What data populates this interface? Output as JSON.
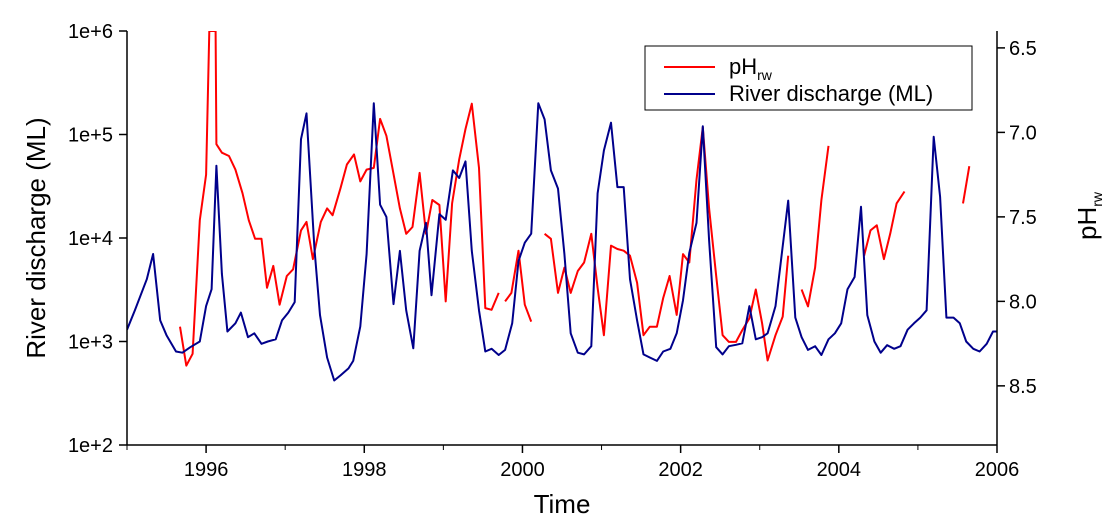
{
  "chart_data": {
    "type": "line",
    "title": "",
    "xlabel": "Time",
    "ylabel_left": "River discharge (ML)",
    "ylabel_right": {
      "base": "pH",
      "sub": "rw"
    },
    "xlim": [
      1995.0,
      2006.0
    ],
    "x_ticks": [
      1996,
      1998,
      2000,
      2002,
      2004,
      2006
    ],
    "x_tick_labels": [
      "1996",
      "1998",
      "2000",
      "2002",
      "2004",
      "2006"
    ],
    "ylim_left": [
      100,
      1000000
    ],
    "y_scale_left": "log",
    "y_ticks_left": [
      100,
      1000,
      10000,
      100000,
      1000000
    ],
    "y_tick_labels_left": [
      "1e+2",
      "1e+3",
      "1e+4",
      "1e+5",
      "1e+6"
    ],
    "ylim_right": [
      6.4,
      8.85
    ],
    "y_right_inverted": true,
    "y_ticks_right": [
      6.5,
      7.0,
      7.5,
      8.0,
      8.5
    ],
    "y_tick_labels_right": [
      "6.5",
      "7.0",
      "7.5",
      "8.0",
      "8.5"
    ],
    "grid": false,
    "legend_position": "top-right",
    "legend": [
      {
        "base": "pH",
        "sub": "rw",
        "color": "#ff0000"
      },
      {
        "base": "River discharge (ML)",
        "sub": "",
        "color": "#00008b"
      }
    ],
    "series": [
      {
        "name": "pHrw",
        "axis": "right",
        "color": "#ff0000",
        "segments": [
          [
            [
              1995.67,
              8.15
            ],
            [
              1995.75,
              8.38
            ],
            [
              1995.83,
              8.31
            ],
            [
              1995.92,
              7.52
            ],
            [
              1996.0,
              7.25
            ],
            [
              1996.04,
              6.4
            ],
            [
              1996.12,
              6.4
            ],
            [
              1996.13,
              7.07
            ],
            [
              1996.2,
              7.12
            ],
            [
              1996.29,
              7.14
            ],
            [
              1996.37,
              7.22
            ],
            [
              1996.46,
              7.36
            ],
            [
              1996.54,
              7.52
            ],
            [
              1996.62,
              7.63
            ],
            [
              1996.7,
              7.63
            ],
            [
              1996.77,
              7.92
            ],
            [
              1996.85,
              7.79
            ],
            [
              1996.93,
              8.02
            ],
            [
              1997.02,
              7.85
            ],
            [
              1997.1,
              7.81
            ],
            [
              1997.2,
              7.58
            ],
            [
              1997.27,
              7.53
            ],
            [
              1997.35,
              7.75
            ],
            [
              1997.45,
              7.53
            ],
            [
              1997.53,
              7.45
            ],
            [
              1997.6,
              7.49
            ],
            [
              1997.7,
              7.33
            ],
            [
              1997.78,
              7.19
            ],
            [
              1997.87,
              7.13
            ],
            [
              1997.95,
              7.29
            ],
            [
              1998.03,
              7.22
            ],
            [
              1998.12,
              7.21
            ],
            [
              1998.2,
              6.92
            ],
            [
              1998.28,
              7.02
            ],
            [
              1998.36,
              7.22
            ],
            [
              1998.45,
              7.45
            ],
            [
              1998.53,
              7.6
            ],
            [
              1998.61,
              7.56
            ],
            [
              1998.7,
              7.24
            ],
            [
              1998.78,
              7.6
            ],
            [
              1998.86,
              7.4
            ],
            [
              1998.95,
              7.43
            ],
            [
              1999.03,
              8.0
            ],
            [
              1999.11,
              7.42
            ],
            [
              1999.2,
              7.16
            ],
            [
              1999.28,
              6.98
            ],
            [
              1999.36,
              6.83
            ],
            [
              1999.45,
              7.21
            ],
            [
              1999.53,
              8.04
            ],
            [
              1999.61,
              8.05
            ],
            [
              1999.7,
              7.95
            ]
          ],
          [
            [
              1999.78,
              8.0
            ],
            [
              1999.86,
              7.95
            ],
            [
              1999.95,
              7.7
            ],
            [
              2000.03,
              8.02
            ],
            [
              2000.11,
              8.12
            ]
          ],
          [
            [
              2000.28,
              7.6
            ],
            [
              2000.36,
              7.63
            ],
            [
              2000.45,
              7.95
            ],
            [
              2000.53,
              7.8
            ],
            [
              2000.61,
              7.95
            ],
            [
              2000.7,
              7.82
            ],
            [
              2000.78,
              7.77
            ],
            [
              2000.87,
              7.6
            ],
            [
              2000.95,
              7.92
            ],
            [
              2001.03,
              8.2
            ],
            [
              2001.12,
              7.67
            ],
            [
              2001.2,
              7.69
            ],
            [
              2001.28,
              7.7
            ],
            [
              2001.36,
              7.73
            ],
            [
              2001.45,
              7.89
            ],
            [
              2001.53,
              8.2
            ],
            [
              2001.61,
              8.15
            ],
            [
              2001.7,
              8.15
            ],
            [
              2001.78,
              7.98
            ],
            [
              2001.86,
              7.85
            ],
            [
              2001.95,
              8.08
            ],
            [
              2002.03,
              7.72
            ],
            [
              2002.11,
              7.77
            ],
            [
              2002.2,
              7.28
            ],
            [
              2002.28,
              6.97
            ],
            [
              2002.36,
              7.45
            ],
            [
              2002.45,
              7.85
            ],
            [
              2002.53,
              8.2
            ],
            [
              2002.61,
              8.24
            ],
            [
              2002.7,
              8.24
            ],
            [
              2002.78,
              8.17
            ],
            [
              2002.87,
              8.1
            ],
            [
              2002.95,
              7.93
            ],
            [
              2003.03,
              8.13
            ],
            [
              2003.1,
              8.35
            ],
            [
              2003.2,
              8.2
            ],
            [
              2003.29,
              8.09
            ],
            [
              2003.36,
              7.73
            ]
          ],
          [
            [
              2003.53,
              7.93
            ],
            [
              2003.61,
              8.03
            ],
            [
              2003.7,
              7.8
            ],
            [
              2003.78,
              7.4
            ],
            [
              2003.87,
              7.08
            ]
          ],
          [
            [
              2004.32,
              7.73
            ],
            [
              2004.4,
              7.58
            ],
            [
              2004.48,
              7.55
            ],
            [
              2004.57,
              7.75
            ],
            [
              2004.65,
              7.6
            ],
            [
              2004.73,
              7.42
            ],
            [
              2004.83,
              7.35
            ]
          ],
          [
            [
              2005.57,
              7.42
            ],
            [
              2005.65,
              7.2
            ]
          ]
        ]
      },
      {
        "name": "River discharge (ML)",
        "axis": "left",
        "color": "#00008b",
        "points": [
          [
            1995.0,
            1300
          ],
          [
            1995.1,
            2000
          ],
          [
            1995.25,
            4000
          ],
          [
            1995.33,
            7000
          ],
          [
            1995.42,
            1600
          ],
          [
            1995.5,
            1150
          ],
          [
            1995.62,
            800
          ],
          [
            1995.7,
            780
          ],
          [
            1995.8,
            880
          ],
          [
            1995.92,
            1000
          ],
          [
            1996.0,
            2200
          ],
          [
            1996.07,
            3200
          ],
          [
            1996.13,
            50000
          ],
          [
            1996.2,
            4500
          ],
          [
            1996.27,
            1250
          ],
          [
            1996.37,
            1500
          ],
          [
            1996.44,
            1900
          ],
          [
            1996.53,
            1100
          ],
          [
            1996.61,
            1200
          ],
          [
            1996.7,
            950
          ],
          [
            1996.78,
            1000
          ],
          [
            1996.88,
            1050
          ],
          [
            1996.96,
            1600
          ],
          [
            1997.04,
            1900
          ],
          [
            1997.12,
            2400
          ],
          [
            1997.2,
            90000
          ],
          [
            1997.27,
            160000
          ],
          [
            1997.37,
            8000
          ],
          [
            1997.44,
            1800
          ],
          [
            1997.53,
            700
          ],
          [
            1997.62,
            420
          ],
          [
            1997.7,
            470
          ],
          [
            1997.8,
            550
          ],
          [
            1997.86,
            650
          ],
          [
            1997.95,
            1400
          ],
          [
            1998.03,
            7000
          ],
          [
            1998.12,
            200000
          ],
          [
            1998.2,
            21000
          ],
          [
            1998.28,
            16000
          ],
          [
            1998.37,
            2300
          ],
          [
            1998.45,
            7500
          ],
          [
            1998.53,
            2000
          ],
          [
            1998.62,
            860
          ],
          [
            1998.7,
            7500
          ],
          [
            1998.78,
            14000
          ],
          [
            1998.85,
            2800
          ],
          [
            1998.95,
            17000
          ],
          [
            1999.03,
            15000
          ],
          [
            1999.12,
            45000
          ],
          [
            1999.2,
            38000
          ],
          [
            1999.28,
            55000
          ],
          [
            1999.36,
            7500
          ],
          [
            1999.45,
            2000
          ],
          [
            1999.53,
            800
          ],
          [
            1999.61,
            850
          ],
          [
            1999.7,
            740
          ],
          [
            1999.78,
            830
          ],
          [
            1999.87,
            1500
          ],
          [
            1999.95,
            6000
          ],
          [
            2000.03,
            9000
          ],
          [
            2000.11,
            11000
          ],
          [
            2000.2,
            200000
          ],
          [
            2000.28,
            140000
          ],
          [
            2000.36,
            45000
          ],
          [
            2000.45,
            30000
          ],
          [
            2000.53,
            7000
          ],
          [
            2000.61,
            1200
          ],
          [
            2000.7,
            780
          ],
          [
            2000.78,
            750
          ],
          [
            2000.87,
            900
          ],
          [
            2000.95,
            27000
          ],
          [
            2001.03,
            70000
          ],
          [
            2001.12,
            130000
          ],
          [
            2001.2,
            31000
          ],
          [
            2001.28,
            31000
          ],
          [
            2001.36,
            4000
          ],
          [
            2001.45,
            1600
          ],
          [
            2001.53,
            750
          ],
          [
            2001.61,
            700
          ],
          [
            2001.7,
            650
          ],
          [
            2001.78,
            800
          ],
          [
            2001.87,
            850
          ],
          [
            2001.95,
            1200
          ],
          [
            2002.03,
            2500
          ],
          [
            2002.11,
            7200
          ],
          [
            2002.2,
            14000
          ],
          [
            2002.28,
            120000
          ],
          [
            2002.36,
            9500
          ],
          [
            2002.45,
            880
          ],
          [
            2002.53,
            750
          ],
          [
            2002.61,
            900
          ],
          [
            2002.7,
            930
          ],
          [
            2002.78,
            960
          ],
          [
            2002.87,
            2200
          ],
          [
            2002.95,
            1050
          ],
          [
            2003.03,
            1100
          ],
          [
            2003.1,
            1200
          ],
          [
            2003.2,
            2200
          ],
          [
            2003.36,
            23000
          ],
          [
            2003.45,
            1700
          ],
          [
            2003.53,
            1100
          ],
          [
            2003.61,
            830
          ],
          [
            2003.7,
            900
          ],
          [
            2003.78,
            740
          ],
          [
            2003.87,
            1050
          ],
          [
            2003.95,
            1200
          ],
          [
            2004.03,
            1500
          ],
          [
            2004.11,
            3200
          ],
          [
            2004.2,
            4200
          ],
          [
            2004.28,
            20000
          ],
          [
            2004.36,
            1800
          ],
          [
            2004.45,
            1000
          ],
          [
            2004.53,
            780
          ],
          [
            2004.61,
            920
          ],
          [
            2004.7,
            850
          ],
          [
            2004.78,
            900
          ],
          [
            2004.87,
            1300
          ],
          [
            2004.95,
            1500
          ],
          [
            2005.03,
            1700
          ],
          [
            2005.11,
            2000
          ],
          [
            2005.2,
            95000
          ],
          [
            2005.28,
            25000
          ],
          [
            2005.36,
            1700
          ],
          [
            2005.45,
            1700
          ],
          [
            2005.53,
            1500
          ],
          [
            2005.61,
            1000
          ],
          [
            2005.7,
            850
          ],
          [
            2005.78,
            800
          ],
          [
            2005.87,
            950
          ],
          [
            2005.95,
            1250
          ],
          [
            2006.0,
            1250
          ]
        ]
      }
    ]
  }
}
